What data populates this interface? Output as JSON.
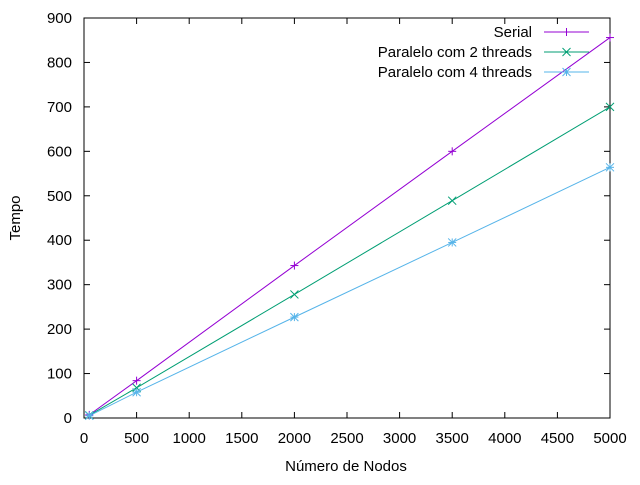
{
  "chart_data": {
    "type": "line",
    "title": "",
    "xlabel": "Número de Nodos",
    "ylabel": "Tempo",
    "xlim": [
      0,
      5000
    ],
    "ylim": [
      0,
      900
    ],
    "xticks": [
      0,
      500,
      1000,
      1500,
      2000,
      2500,
      3000,
      3500,
      4000,
      4500,
      5000
    ],
    "yticks": [
      0,
      100,
      200,
      300,
      400,
      500,
      600,
      700,
      800,
      900
    ],
    "grid": false,
    "legend_position": "top-right",
    "series": [
      {
        "name": "Serial",
        "color": "#9400d3",
        "marker": "plus",
        "x": [
          50,
          500,
          2000,
          3500,
          5000
        ],
        "y": [
          7,
          84,
          343,
          600,
          856
        ]
      },
      {
        "name": "Paralelo com 2 threads",
        "color": "#009e73",
        "marker": "cross",
        "x": [
          50,
          500,
          2000,
          3500,
          5000
        ],
        "y": [
          6,
          68,
          278,
          489,
          700
        ]
      },
      {
        "name": "Paralelo com 4 threads",
        "color": "#56b4e9",
        "marker": "star",
        "x": [
          50,
          500,
          2000,
          3500,
          5000
        ],
        "y": [
          5,
          58,
          227,
          395,
          564
        ]
      }
    ]
  }
}
